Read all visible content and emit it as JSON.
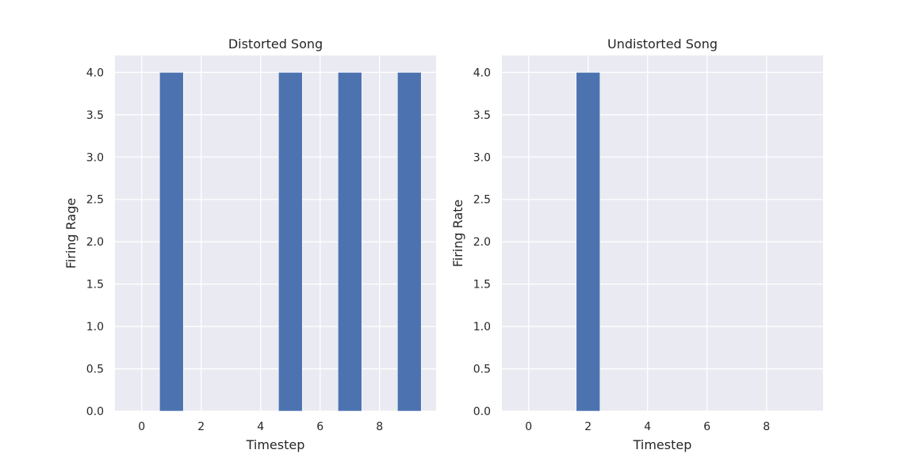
{
  "figure": {
    "background": "#ffffff",
    "axes_facecolor": "#eaeaf2",
    "grid_color": "#ffffff",
    "bar_color": "#4c72b0",
    "text_color": "#262626"
  },
  "chart_data": [
    {
      "type": "bar",
      "title": "Distorted Song",
      "xlabel": "Timestep",
      "ylabel": "Firing Rage",
      "x": [
        0,
        1,
        2,
        3,
        4,
        5,
        6,
        7,
        8,
        9
      ],
      "values": [
        0,
        4,
        0,
        0,
        0,
        4,
        0,
        4,
        0,
        4
      ],
      "bar_width": 0.8,
      "xlim": [
        -0.9,
        9.9
      ],
      "ylim": [
        0,
        4.2
      ],
      "xticks": [
        0,
        2,
        4,
        6,
        8
      ],
      "yticks": [
        0.0,
        0.5,
        1.0,
        1.5,
        2.0,
        2.5,
        3.0,
        3.5,
        4.0
      ],
      "xtick_labels": [
        "0",
        "2",
        "4",
        "6",
        "8"
      ],
      "ytick_labels": [
        "0.0",
        "0.5",
        "1.0",
        "1.5",
        "2.0",
        "2.5",
        "3.0",
        "3.5",
        "4.0"
      ],
      "grid": true,
      "legend": "none"
    },
    {
      "type": "bar",
      "title": "Undistorted Song",
      "xlabel": "Timestep",
      "ylabel": "Firing Rate",
      "x": [
        0,
        1,
        2,
        3,
        4,
        5,
        6,
        7,
        8,
        9
      ],
      "values": [
        0,
        0,
        4,
        0,
        0,
        0,
        0,
        0,
        0,
        0
      ],
      "bar_width": 0.8,
      "xlim": [
        -0.9,
        9.9
      ],
      "ylim": [
        0,
        4.2
      ],
      "xticks": [
        0,
        2,
        4,
        6,
        8
      ],
      "yticks": [
        0.0,
        0.5,
        1.0,
        1.5,
        2.0,
        2.5,
        3.0,
        3.5,
        4.0
      ],
      "xtick_labels": [
        "0",
        "2",
        "4",
        "6",
        "8"
      ],
      "ytick_labels": [
        "0.0",
        "0.5",
        "1.0",
        "1.5",
        "2.0",
        "2.5",
        "3.0",
        "3.5",
        "4.0"
      ],
      "grid": true,
      "legend": "none"
    }
  ]
}
